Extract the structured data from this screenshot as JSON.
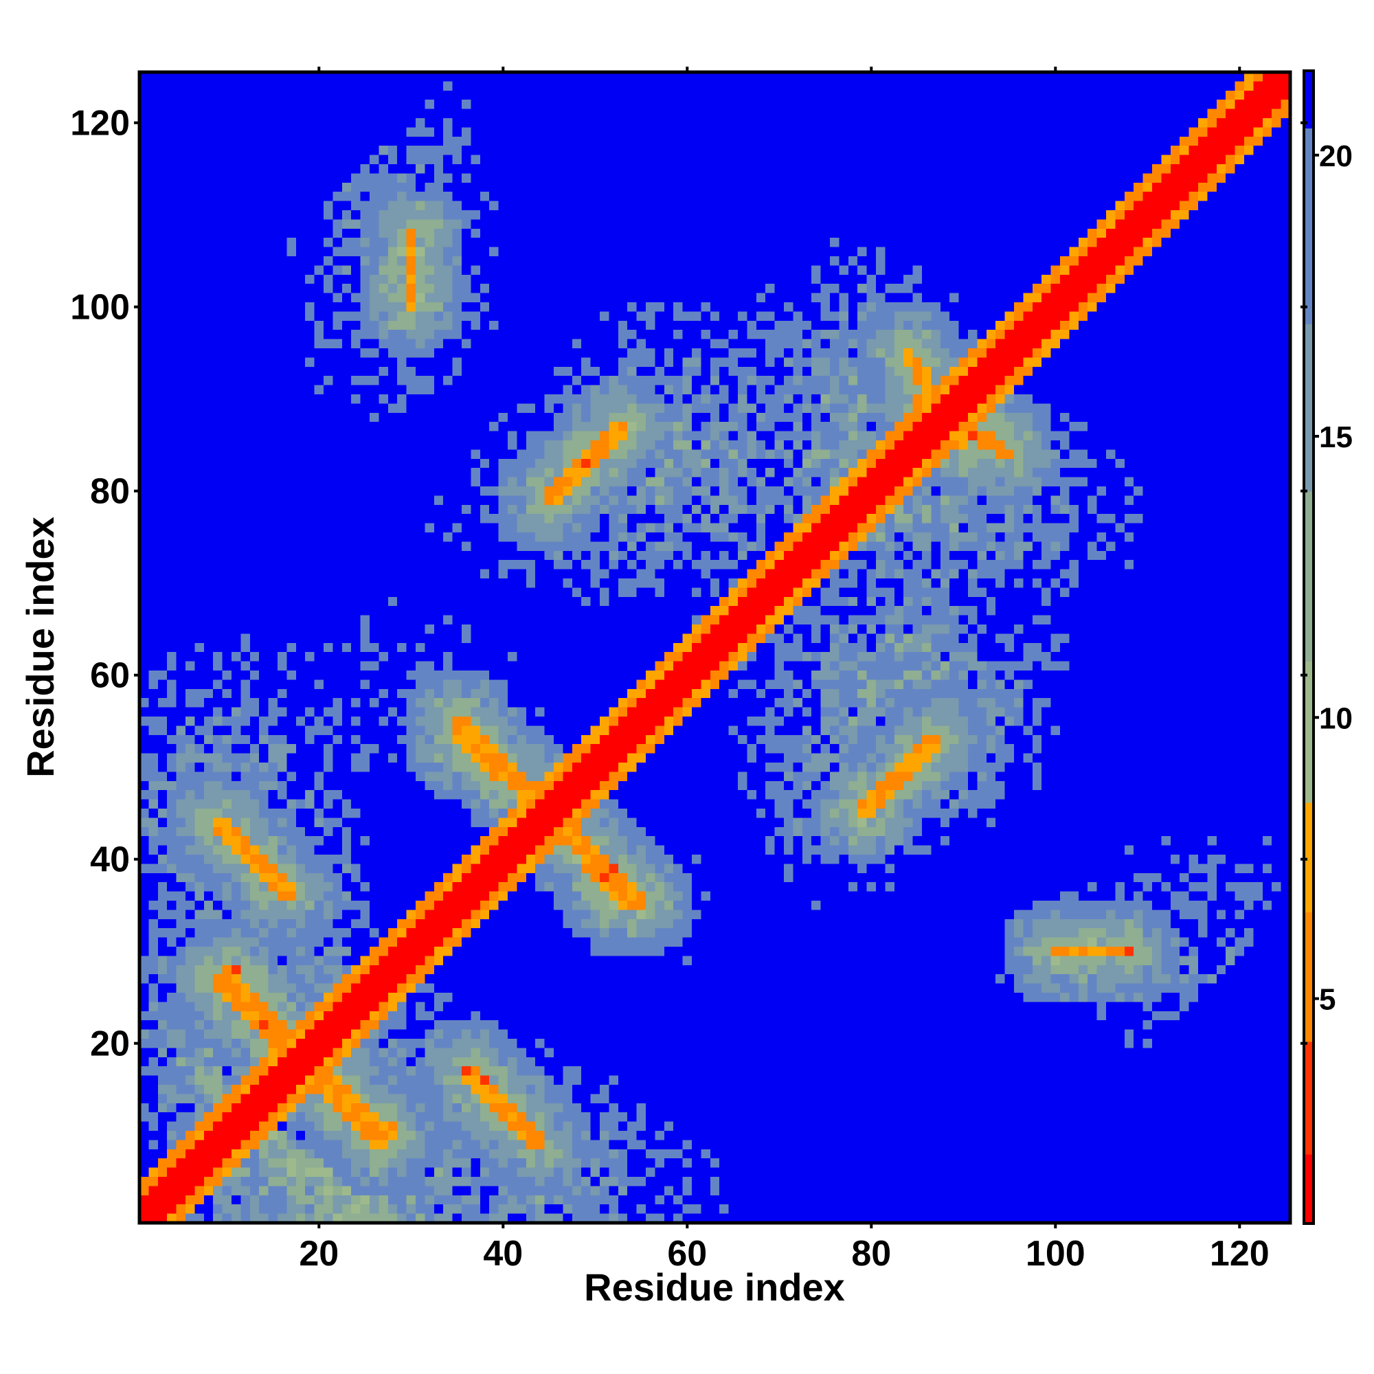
{
  "chart_data": {
    "type": "heatmap",
    "title": "",
    "xlabel": "Residue index",
    "ylabel": "Residue index",
    "n_residues": 125,
    "xlim": [
      1,
      125
    ],
    "ylim": [
      1,
      125
    ],
    "x_ticks": [
      20,
      40,
      60,
      80,
      100,
      120
    ],
    "y_ticks": [
      20,
      40,
      60,
      80,
      100,
      120
    ],
    "colorbar": {
      "ticks": [
        5,
        10,
        15,
        20
      ],
      "range": [
        1,
        21.5
      ],
      "colormap": [
        {
          "value": 1.0,
          "color": "#ff0000"
        },
        {
          "value": 4.0,
          "color": "#ff3000"
        },
        {
          "value": 6.5,
          "color": "#ff8c00"
        },
        {
          "value": 8.5,
          "color": "#ffa500"
        },
        {
          "value": 8.6,
          "color": "#9fb98a"
        },
        {
          "value": 12.0,
          "color": "#8aaa8a"
        },
        {
          "value": 16.0,
          "color": "#6f8fb5"
        },
        {
          "value": 20.0,
          "color": "#5f7fc8"
        },
        {
          "value": 21.0,
          "color": "#0000f5"
        }
      ]
    },
    "background_color": "#0000f5",
    "cell_values": "pairwise residue distance (Å); diagonal ~1, far pairs > 21",
    "contact_features": [
      {
        "kind": "diagonal",
        "from": [
          1,
          1
        ],
        "to": [
          125,
          125
        ]
      },
      {
        "kind": "antiparallel",
        "a": [
          9,
          44
        ],
        "b": [
          16,
          37
        ],
        "note": "strand pairing"
      },
      {
        "kind": "antiparallel",
        "a": [
          18,
          17
        ],
        "b": [
          27,
          9
        ]
      },
      {
        "kind": "antiparallel",
        "a": [
          36,
          17
        ],
        "b": [
          44,
          9
        ]
      },
      {
        "kind": "antiparallel",
        "a": [
          35,
          55
        ],
        "b": [
          44,
          46
        ]
      },
      {
        "kind": "antiparallel",
        "a": [
          44,
          47
        ],
        "b": [
          53,
          35
        ]
      },
      {
        "kind": "parallel",
        "a": [
          45,
          79
        ],
        "b": [
          53,
          87
        ]
      },
      {
        "kind": "antiparallel",
        "a": [
          79,
          45
        ],
        "b": [
          87,
          53
        ]
      },
      {
        "kind": "antiparallel",
        "a": [
          10,
          28
        ],
        "b": [
          17,
          20
        ]
      },
      {
        "kind": "antiparallel",
        "a": [
          85,
          90
        ],
        "b": [
          95,
          84
        ]
      },
      {
        "kind": "antiparallel",
        "a": [
          100,
          30
        ],
        "b": [
          108,
          30
        ]
      }
    ]
  }
}
